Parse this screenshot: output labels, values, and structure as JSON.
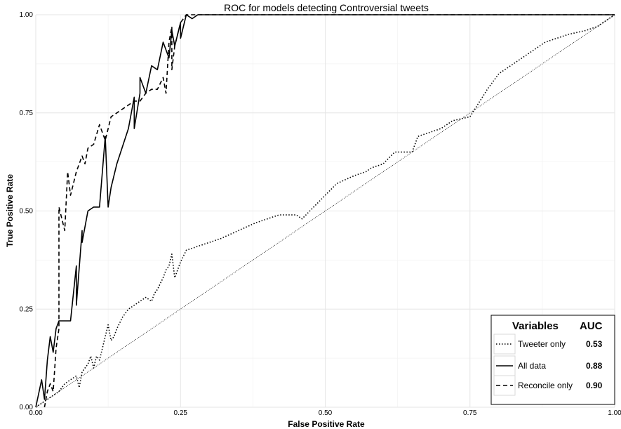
{
  "chart_data": {
    "type": "line",
    "title": "ROC for models detecting Controversial tweets",
    "xlabel": "False Positive Rate",
    "ylabel": "True Positive Rate",
    "xlim": [
      0,
      1
    ],
    "ylim": [
      0,
      1
    ],
    "xticks": [
      "0.00",
      "0.25",
      "0.50",
      "0.75",
      "1.00"
    ],
    "yticks": [
      "0.00",
      "0.25",
      "0.50",
      "0.75",
      "1.00"
    ],
    "grid": true,
    "legend": {
      "placement": "bottom-right",
      "title": "Variables",
      "value_header": "AUC"
    },
    "series": [
      {
        "name": "Tweeter only",
        "auc": "0.53",
        "dash": "dotted",
        "x": [
          0.0,
          0.02,
          0.04,
          0.05,
          0.06,
          0.07,
          0.075,
          0.08,
          0.09,
          0.095,
          0.1,
          0.105,
          0.11,
          0.12,
          0.125,
          0.13,
          0.135,
          0.14,
          0.15,
          0.16,
          0.17,
          0.18,
          0.19,
          0.2,
          0.205,
          0.21,
          0.22,
          0.225,
          0.23,
          0.235,
          0.24,
          0.245,
          0.25,
          0.26,
          0.28,
          0.3,
          0.32,
          0.35,
          0.38,
          0.4,
          0.42,
          0.45,
          0.46,
          0.48,
          0.5,
          0.52,
          0.55,
          0.57,
          0.58,
          0.6,
          0.62,
          0.64,
          0.65,
          0.66,
          0.68,
          0.7,
          0.72,
          0.75,
          0.78,
          0.8,
          0.83,
          0.85,
          0.88,
          0.9,
          0.92,
          0.95,
          0.97,
          1.0
        ],
        "y": [
          0.0,
          0.02,
          0.04,
          0.06,
          0.07,
          0.08,
          0.05,
          0.09,
          0.11,
          0.13,
          0.1,
          0.13,
          0.12,
          0.18,
          0.21,
          0.17,
          0.18,
          0.2,
          0.23,
          0.25,
          0.26,
          0.27,
          0.28,
          0.27,
          0.29,
          0.3,
          0.33,
          0.35,
          0.36,
          0.39,
          0.33,
          0.35,
          0.37,
          0.4,
          0.41,
          0.42,
          0.43,
          0.45,
          0.47,
          0.48,
          0.49,
          0.49,
          0.48,
          0.51,
          0.54,
          0.57,
          0.59,
          0.6,
          0.61,
          0.62,
          0.65,
          0.65,
          0.65,
          0.69,
          0.7,
          0.71,
          0.73,
          0.74,
          0.81,
          0.85,
          0.88,
          0.9,
          0.93,
          0.94,
          0.95,
          0.96,
          0.97,
          1.0
        ]
      },
      {
        "name": "All data",
        "auc": "0.88",
        "dash": "solid",
        "x": [
          0.0,
          0.01,
          0.015,
          0.02,
          0.025,
          0.03,
          0.035,
          0.04,
          0.045,
          0.05,
          0.06,
          0.07,
          0.07,
          0.08,
          0.08,
          0.09,
          0.1,
          0.11,
          0.12,
          0.125,
          0.13,
          0.14,
          0.16,
          0.17,
          0.17,
          0.18,
          0.18,
          0.19,
          0.2,
          0.21,
          0.22,
          0.23,
          0.235,
          0.24,
          0.25,
          0.25,
          0.26,
          0.27,
          0.28,
          0.3,
          0.4,
          0.5,
          0.6,
          0.7,
          0.8,
          0.9,
          1.0
        ],
        "y": [
          0.0,
          0.07,
          0.02,
          0.12,
          0.18,
          0.14,
          0.2,
          0.22,
          0.22,
          0.22,
          0.22,
          0.36,
          0.26,
          0.45,
          0.42,
          0.5,
          0.51,
          0.51,
          0.69,
          0.51,
          0.56,
          0.62,
          0.71,
          0.79,
          0.71,
          0.8,
          0.84,
          0.8,
          0.87,
          0.86,
          0.93,
          0.89,
          0.96,
          0.92,
          0.98,
          0.94,
          1.0,
          0.99,
          1.0,
          1.0,
          1.0,
          1.0,
          1.0,
          1.0,
          1.0,
          1.0,
          1.0
        ]
      },
      {
        "name": "Reconcile only",
        "auc": "0.90",
        "dash": "dashed",
        "x": [
          0.015,
          0.02,
          0.025,
          0.03,
          0.035,
          0.04,
          0.04,
          0.05,
          0.055,
          0.06,
          0.07,
          0.08,
          0.085,
          0.09,
          0.1,
          0.11,
          0.12,
          0.13,
          0.14,
          0.16,
          0.17,
          0.18,
          0.19,
          0.2,
          0.21,
          0.22,
          0.225,
          0.23,
          0.235,
          0.235,
          0.24,
          0.245,
          0.25,
          0.26,
          0.27,
          0.28,
          0.3,
          0.4,
          0.5,
          0.6,
          0.7,
          0.8,
          0.9,
          1.0
        ],
        "y": [
          0.0,
          0.04,
          0.06,
          0.04,
          0.15,
          0.2,
          0.51,
          0.45,
          0.6,
          0.54,
          0.6,
          0.64,
          0.62,
          0.66,
          0.67,
          0.72,
          0.68,
          0.74,
          0.75,
          0.77,
          0.78,
          0.78,
          0.8,
          0.81,
          0.81,
          0.84,
          0.8,
          0.93,
          0.97,
          0.86,
          0.92,
          0.95,
          0.98,
          1.0,
          1.0,
          1.0,
          1.0,
          1.0,
          1.0,
          1.0,
          1.0,
          1.0,
          1.0,
          1.0
        ]
      }
    ],
    "reference_line": {
      "x": [
        0,
        1
      ],
      "y": [
        0,
        1
      ],
      "dash": "dotted"
    }
  }
}
